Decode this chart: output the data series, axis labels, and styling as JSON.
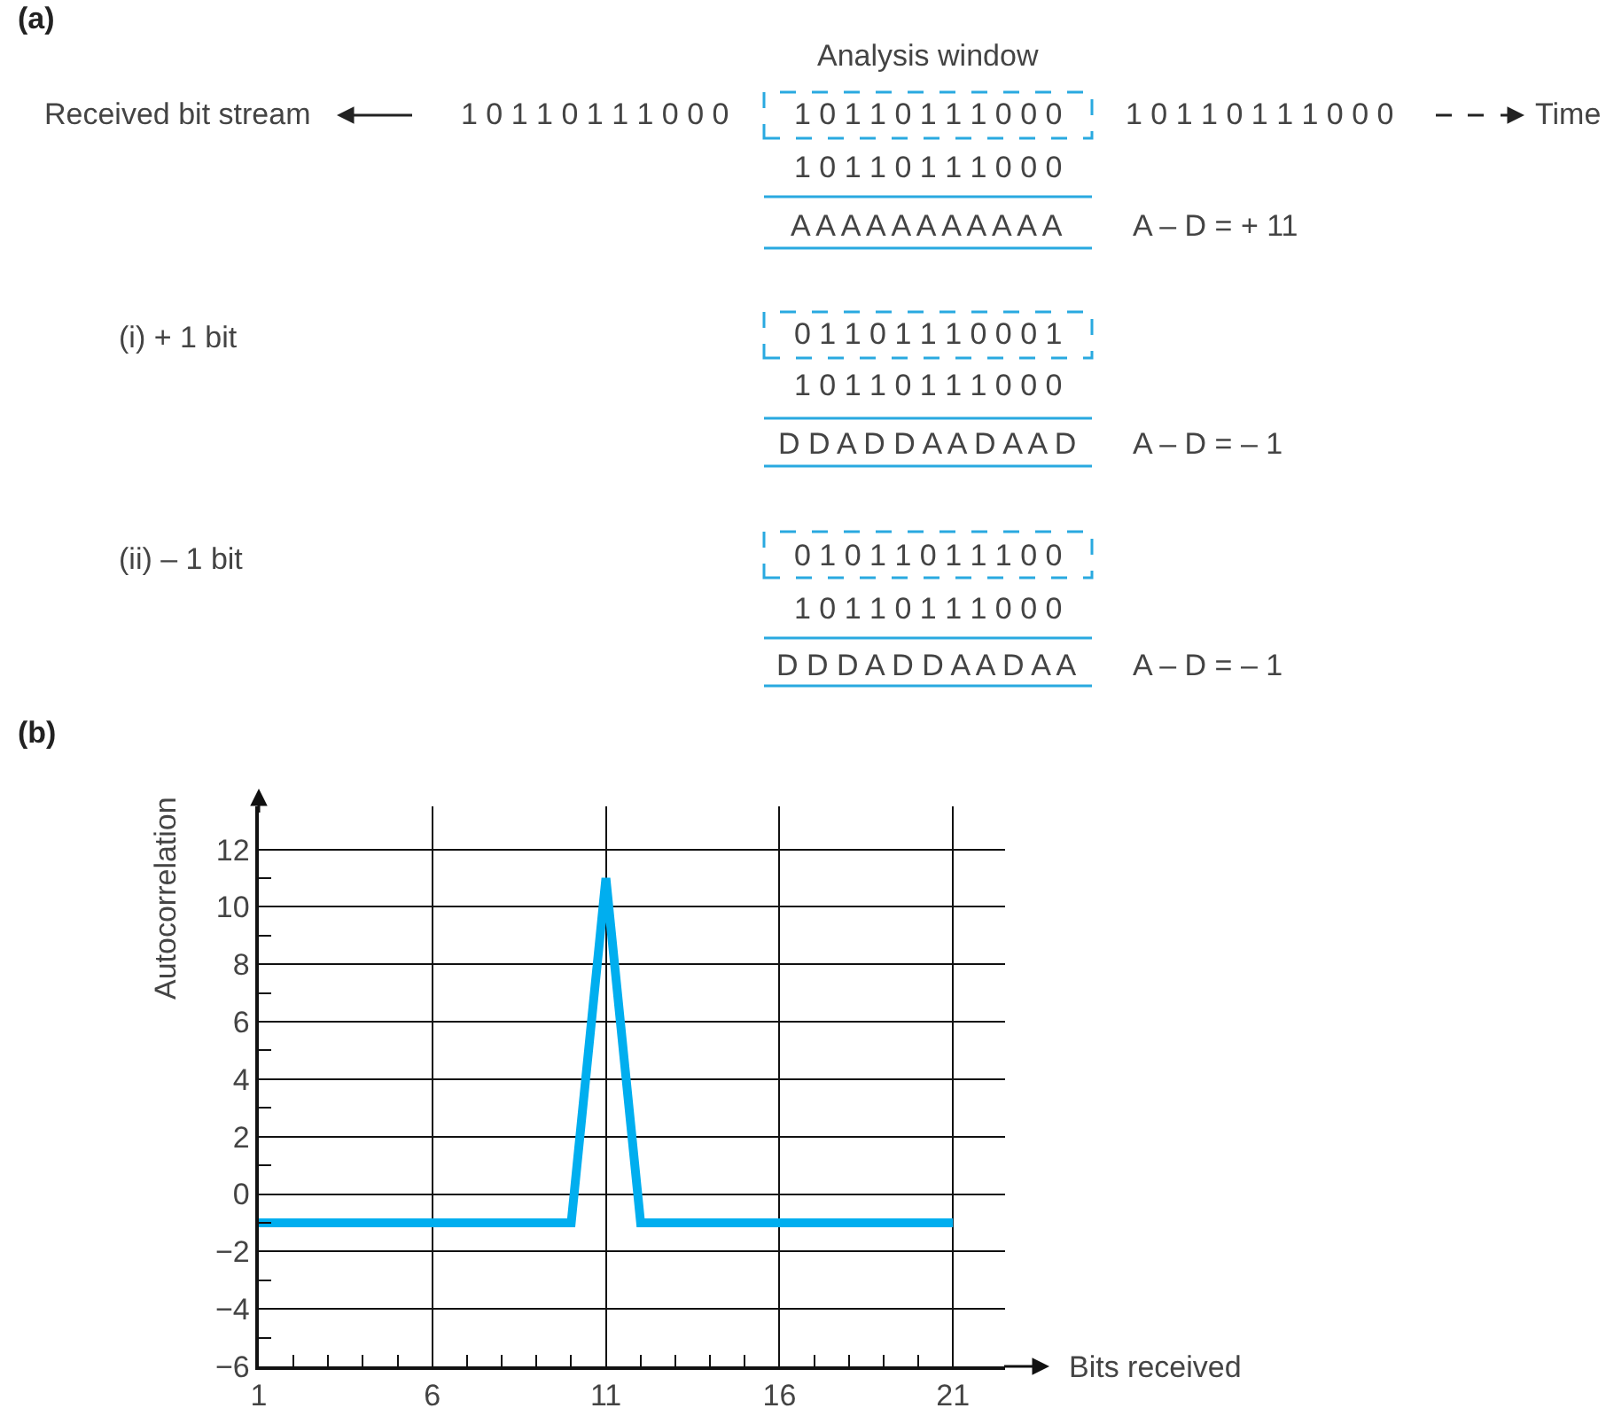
{
  "chart_data": [
    {
      "type": "other",
      "title": "(a)",
      "annotations": [
        "Analysis window",
        "Received bit stream",
        "1 0 1 1 0 1 1 1 0 0 0",
        "1 0 1 1 0 1 1 1 0 0 0",
        "1 0 1 1 0 1 1 1 0 0 0",
        "Time",
        "1 0 1 1 0 1 1 1 0 0 0",
        "A A A A A A A A A A A",
        "A – D = + 11",
        "(i) + 1 bit",
        "0 1 1 0 1 1 1 0 0 0 1",
        "1 0 1 1 0 1 1 1 0 0 0",
        "D D A D D A A D A A D",
        "A – D = – 1",
        "(ii) – 1 bit",
        "0 1 0 1 1 0 1 1 1 0 0",
        "1 0 1 1 0 1 1 1 0 0 0",
        "D D D A D D A A D A A",
        "A – D = – 1"
      ]
    },
    {
      "type": "line",
      "title": "(b)",
      "xlabel": "Bits received",
      "ylabel": "Autocorrelation",
      "x": [
        1,
        10,
        11,
        12,
        21
      ],
      "series": [
        {
          "color": "#00aeef",
          "values": [
            -1,
            -1,
            11,
            -1,
            -1
          ]
        }
      ],
      "xlim": [
        1,
        22.5
      ],
      "ylim": [
        -6,
        13.5
      ],
      "xticks": [
        1,
        {
          "value": 2,
          "label": null
        },
        {
          "value": 3,
          "label": null
        },
        {
          "value": 4,
          "label": null
        },
        {
          "value": 5,
          "label": null
        },
        6,
        {
          "value": 7,
          "label": null
        },
        {
          "value": 8,
          "label": null
        },
        {
          "value": 9,
          "label": null
        },
        {
          "value": 10,
          "label": null
        },
        11,
        {
          "value": 12,
          "label": null
        },
        {
          "value": 13,
          "label": null
        },
        {
          "value": 14,
          "label": null
        },
        {
          "value": 15,
          "label": null
        },
        16,
        {
          "value": 17,
          "label": null
        },
        {
          "value": 18,
          "label": null
        },
        {
          "value": 19,
          "label": null
        },
        {
          "value": 20,
          "label": null
        },
        21
      ],
      "yticks": [
        -6,
        {
          "value": -5,
          "label": null
        },
        -4,
        {
          "value": -3,
          "label": null
        },
        -2,
        {
          "value": -1,
          "label": null
        },
        0,
        {
          "value": 1,
          "label": null
        },
        2,
        {
          "value": 3,
          "label": null
        },
        4,
        {
          "value": 5,
          "label": null
        },
        6,
        {
          "value": 7,
          "label": null
        },
        8,
        {
          "value": 9,
          "label": null
        },
        10,
        {
          "value": 11,
          "label": null
        },
        12
      ],
      "grid": true,
      "marker": "none",
      "line_style": "solid"
    }
  ]
}
